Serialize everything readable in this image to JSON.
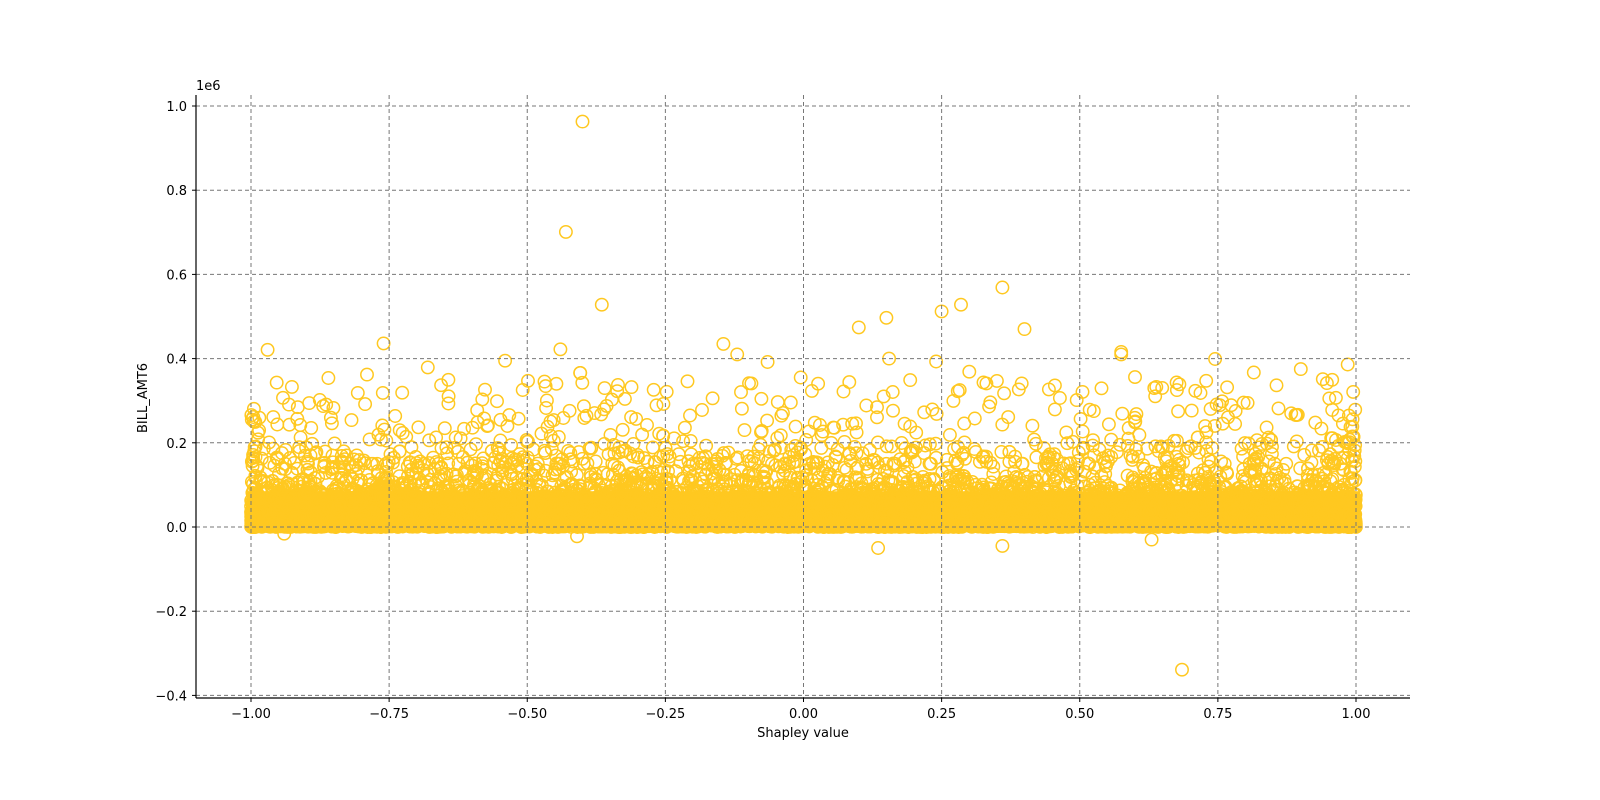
{
  "chart_data": {
    "type": "scatter",
    "title": "",
    "xlabel": "Shapley value",
    "ylabel": "BILL_AMT6",
    "y_offset_label": "1e6",
    "xlim": [
      -1.1,
      1.1
    ],
    "ylim": [
      -0.41,
      1.03
    ],
    "x_ticks": [
      -1.0,
      -0.75,
      -0.5,
      -0.25,
      0.0,
      0.25,
      0.5,
      0.75,
      1.0
    ],
    "x_tick_labels": [
      "−1.00",
      "−0.75",
      "−0.50",
      "−0.25",
      "0.00",
      "0.25",
      "0.50",
      "0.75",
      "1.00"
    ],
    "y_ticks": [
      -0.4,
      -0.2,
      0.0,
      0.2,
      0.4,
      0.6,
      0.8,
      1.0
    ],
    "y_tick_labels": [
      "−0.4",
      "−0.2",
      "0.0",
      "0.2",
      "0.4",
      "0.6",
      "0.8",
      "1.0"
    ],
    "grid": true,
    "grid_style": "dashed",
    "legend": null,
    "marker": "hollow-circle",
    "marker_color": "#FFC820",
    "grid_color": "#777777",
    "density_note": "Dense band of thousands of points spanning x in [-1, 1], y mostly in [0, 0.15]e6, thinning out up to ~0.4e6",
    "dense_band": {
      "x_range": [
        -1.0,
        1.0
      ],
      "y_core": [
        0.0,
        0.1
      ],
      "y_tail_max": 0.4,
      "count": 9000
    },
    "outliers": [
      {
        "x": -0.4,
        "y": 0.963
      },
      {
        "x": -0.43,
        "y": 0.701
      },
      {
        "x": -0.365,
        "y": 0.528
      },
      {
        "x": 0.36,
        "y": 0.569
      },
      {
        "x": 0.285,
        "y": 0.528
      },
      {
        "x": 0.25,
        "y": 0.512
      },
      {
        "x": 0.15,
        "y": 0.497
      },
      {
        "x": 0.1,
        "y": 0.474
      },
      {
        "x": 0.4,
        "y": 0.47
      },
      {
        "x": -0.97,
        "y": 0.421
      },
      {
        "x": -0.76,
        "y": 0.436
      },
      {
        "x": -0.44,
        "y": 0.422
      },
      {
        "x": -0.145,
        "y": 0.435
      },
      {
        "x": -0.12,
        "y": 0.41
      },
      {
        "x": 0.155,
        "y": 0.4
      },
      {
        "x": 0.575,
        "y": 0.416
      },
      {
        "x": 0.575,
        "y": 0.41
      },
      {
        "x": 0.745,
        "y": 0.399
      },
      {
        "x": 0.985,
        "y": 0.386
      },
      {
        "x": -0.54,
        "y": 0.395
      },
      {
        "x": -0.065,
        "y": 0.392
      },
      {
        "x": 0.24,
        "y": 0.393
      },
      {
        "x": -0.68,
        "y": 0.379
      },
      {
        "x": -0.79,
        "y": 0.362
      },
      {
        "x": 0.9,
        "y": 0.375
      },
      {
        "x": 0.3,
        "y": 0.369
      },
      {
        "x": 0.815,
        "y": 0.367
      },
      {
        "x": 0.6,
        "y": 0.356
      },
      {
        "x": 0.35,
        "y": 0.347
      },
      {
        "x": -0.86,
        "y": 0.354
      },
      {
        "x": -0.21,
        "y": 0.346
      },
      {
        "x": 0.94,
        "y": 0.351
      },
      {
        "x": -0.36,
        "y": 0.33
      },
      {
        "x": 0.395,
        "y": 0.341
      },
      {
        "x": 0.995,
        "y": 0.321
      },
      {
        "x": 0.505,
        "y": 0.321
      },
      {
        "x": 0.635,
        "y": 0.33
      },
      {
        "x": -0.005,
        "y": 0.355
      },
      {
        "x": 0.685,
        "y": -0.339
      },
      {
        "x": 0.36,
        "y": -0.045
      },
      {
        "x": 0.135,
        "y": -0.05
      },
      {
        "x": 0.63,
        "y": -0.03
      },
      {
        "x": -0.41,
        "y": -0.022
      },
      {
        "x": -0.94,
        "y": -0.016
      }
    ]
  }
}
